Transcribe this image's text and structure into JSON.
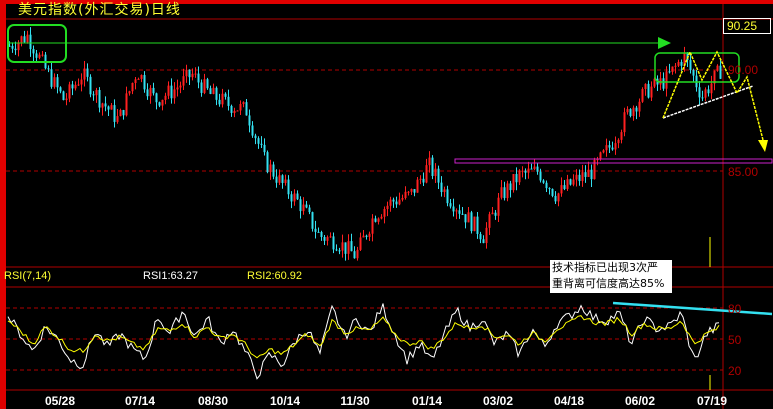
{
  "header": {
    "title": "美元指数(外汇交易)日线",
    "last_price": "90.25"
  },
  "colors": {
    "up": "#ff2020",
    "down": "#33e0f0",
    "grid": "#b00000",
    "rsi1": "#ffffff",
    "rsi2": "#ffff00",
    "annotation_box": "#22dd22",
    "neckline": "#ffffff",
    "projection": "#ffff00",
    "divergence": "#33e0f0",
    "support_box": "#cc22cc"
  },
  "annotation": {
    "line1": "技术指标已出现3次严",
    "line2": "重背离可信度高达85%"
  },
  "chart_data": [
    {
      "type": "candlestick",
      "title": "美元指数(外汇交易)日线",
      "y_ticks": [
        "90.00",
        "85.00"
      ],
      "ylim": [
        80.5,
        92.0
      ],
      "x_ticks": [
        "05/28",
        "07/14",
        "08/30",
        "10/14",
        "11/30",
        "01/14",
        "03/02",
        "04/18",
        "06/02",
        "07/19"
      ],
      "close_path": [
        91.2,
        91.7,
        90.0,
        88.5,
        89.8,
        88.5,
        87.5,
        90.0,
        88.5,
        89.0,
        89.8,
        88.8,
        88.3,
        88.0,
        85.5,
        84.3,
        83.3,
        81.8,
        81.5,
        80.8,
        82.8,
        83.5,
        83.8,
        85.3,
        83.8,
        82.8,
        81.8,
        83.8,
        84.8,
        85.0,
        83.8,
        84.5,
        85.0,
        86.3,
        88.0,
        89.0,
        89.5,
        90.7,
        88.7,
        90.0
      ],
      "last": 90.25
    },
    {
      "type": "line",
      "title": "RSI(7,14)",
      "y_ticks": [
        "80",
        "50",
        "20"
      ],
      "ylim": [
        5,
        100
      ],
      "series": [
        {
          "name": "RSI1:63.27",
          "values": [
            72,
            55,
            38,
            62,
            50,
            30,
            25,
            58,
            42,
            55,
            40,
            30,
            72,
            55,
            78,
            52,
            70,
            45,
            60,
            38,
            15,
            35,
            25,
            48,
            60,
            35,
            80,
            52,
            70,
            55,
            82,
            55,
            30,
            45,
            28,
            55,
            78,
            60,
            70,
            45,
            55,
            35,
            60,
            42,
            65,
            72,
            82,
            70,
            68,
            75,
            45,
            70,
            60,
            62,
            75,
            28,
            55,
            63
          ]
        },
        {
          "name": "RSI2:60.92",
          "values": [
            68,
            58,
            45,
            62,
            52,
            40,
            38,
            55,
            48,
            52,
            45,
            40,
            60,
            58,
            66,
            52,
            62,
            50,
            55,
            45,
            30,
            40,
            35,
            45,
            55,
            42,
            68,
            56,
            60,
            58,
            70,
            55,
            45,
            48,
            40,
            52,
            66,
            60,
            64,
            52,
            54,
            45,
            56,
            48,
            60,
            65,
            72,
            66,
            65,
            70,
            55,
            65,
            60,
            60,
            68,
            45,
            55,
            61
          ]
        }
      ],
      "reference_lines": [
        80,
        50,
        20
      ]
    }
  ]
}
